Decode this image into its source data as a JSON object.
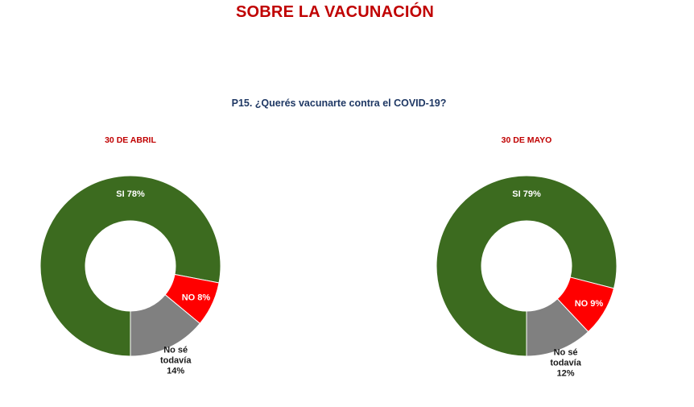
{
  "page_title": "SOBRE LA VACUNACIÓN",
  "question": "P15. ¿Querés vacunarte contra el COVID-19?",
  "colors": {
    "si": "#3c6b1f",
    "no": "#ff0000",
    "nose": "#808080",
    "title": "#c00000",
    "question": "#1f3864"
  },
  "chart_data": [
    {
      "type": "pie",
      "donut": true,
      "title": "30 DE ABRIL",
      "slices": [
        {
          "label": "SI",
          "value": 78,
          "display": "SI 78%",
          "color": "#3c6b1f"
        },
        {
          "label": "NO",
          "value": 8,
          "display": "NO 8%",
          "color": "#ff0000"
        },
        {
          "label": "No sé todavía",
          "value": 14,
          "display_lines": [
            "No sé",
            "todavía",
            "14%"
          ],
          "color": "#808080"
        }
      ]
    },
    {
      "type": "pie",
      "donut": true,
      "title": "30 DE MAYO",
      "slices": [
        {
          "label": "SI",
          "value": 79,
          "display": "SI 79%",
          "color": "#3c6b1f"
        },
        {
          "label": "NO",
          "value": 9,
          "display": "NO 9%",
          "color": "#ff0000"
        },
        {
          "label": "No sé todavía",
          "value": 12,
          "display_lines": [
            "No sé",
            "todavía",
            "12%"
          ],
          "color": "#808080"
        }
      ]
    }
  ]
}
